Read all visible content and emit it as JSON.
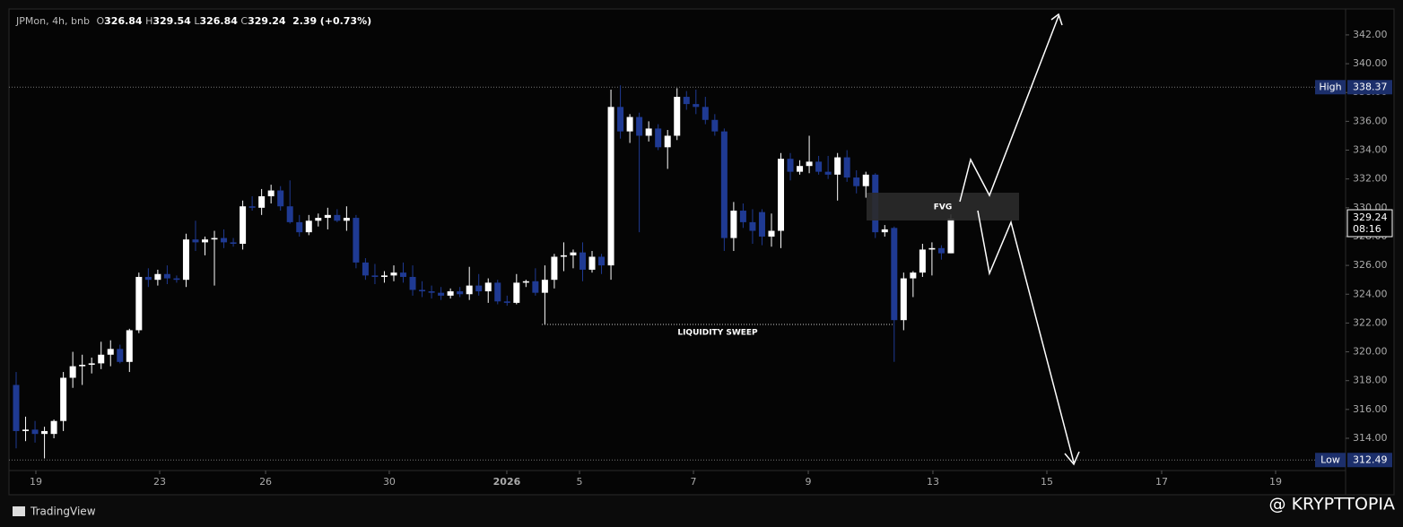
{
  "chart_data": {
    "type": "candlestick",
    "up_color": "#ffffff",
    "down_color": "#1f3a93",
    "header": {
      "symbol": "JPMon, 4h, bnb",
      "ohlc_letters": [
        "O",
        "H",
        "L",
        "C"
      ],
      "change": "2.39",
      "change_pct": "(+0.73%)"
    },
    "open": [
      317.7,
      314.5,
      314.6,
      314.3,
      314.3,
      315.2,
      318.2,
      319.0,
      319.1,
      319.2,
      319.8,
      320.2,
      319.3,
      321.5,
      325.2,
      325.0,
      325.4,
      325.1,
      325.0,
      327.8,
      327.6,
      327.8,
      327.9,
      327.6,
      327.5,
      330.1,
      330.0,
      330.8,
      331.2,
      330.1,
      329.0,
      328.3,
      329.1,
      329.3,
      329.5,
      329.1,
      329.3,
      326.2,
      325.3,
      325.2,
      325.3,
      325.5,
      325.2,
      324.3,
      324.2,
      324.1,
      323.9,
      324.2,
      324.0,
      324.6,
      324.2,
      324.8,
      323.5,
      323.4,
      324.8,
      324.9,
      324.1,
      325.0,
      326.6,
      326.7,
      326.9,
      325.7,
      326.6,
      326.0,
      337.0,
      335.3,
      336.3,
      335.0,
      335.5,
      334.2,
      335.0,
      337.7,
      337.2,
      337.0,
      336.1,
      335.3,
      327.9,
      329.8,
      329.0,
      329.7,
      328.0,
      328.4,
      333.4,
      332.5,
      332.9,
      333.2,
      332.5,
      332.3,
      333.5,
      332.1,
      331.5,
      332.3,
      328.3,
      328.6,
      322.2,
      325.1,
      325.5,
      327.1,
      327.2,
      326.84
    ],
    "high": [
      318.6,
      315.5,
      315.2,
      314.8,
      315.3,
      318.6,
      320.0,
      319.8,
      319.6,
      320.7,
      320.8,
      320.5,
      321.6,
      325.5,
      325.8,
      325.7,
      326.0,
      325.3,
      328.2,
      329.1,
      328.0,
      328.4,
      328.5,
      327.9,
      330.5,
      330.8,
      331.3,
      331.6,
      331.5,
      331.9,
      329.5,
      329.5,
      329.6,
      330.0,
      329.9,
      330.1,
      329.5,
      326.5,
      326.1,
      325.6,
      326.0,
      326.2,
      326.0,
      324.9,
      324.6,
      324.5,
      324.4,
      324.5,
      325.9,
      325.4,
      325.1,
      325.0,
      323.9,
      325.4,
      325.0,
      325.8,
      326.0,
      326.8,
      327.6,
      327.1,
      327.6,
      327.0,
      326.8,
      338.2,
      338.5,
      336.5,
      336.6,
      336.0,
      335.8,
      335.4,
      338.3,
      338.1,
      338.2,
      337.7,
      336.5,
      335.5,
      330.4,
      330.3,
      329.9,
      329.9,
      329.6,
      333.8,
      333.8,
      333.3,
      335.0,
      333.6,
      333.6,
      333.8,
      334.0,
      332.6,
      332.5,
      332.4,
      328.8,
      328.7,
      325.5,
      325.6,
      327.5,
      327.6,
      327.4,
      329.54
    ],
    "low": [
      313.3,
      313.8,
      313.7,
      312.6,
      314.0,
      314.5,
      317.5,
      317.7,
      318.5,
      318.8,
      319.0,
      319.2,
      318.6,
      321.3,
      324.5,
      324.6,
      324.7,
      324.8,
      324.5,
      327.0,
      326.7,
      324.6,
      327.2,
      327.3,
      327.1,
      329.8,
      329.5,
      330.3,
      329.8,
      328.9,
      328.0,
      328.1,
      328.7,
      328.5,
      329.0,
      328.4,
      325.8,
      325.0,
      324.7,
      324.8,
      324.9,
      324.8,
      323.9,
      323.8,
      323.7,
      323.6,
      323.7,
      323.8,
      323.6,
      323.9,
      323.4,
      323.3,
      323.2,
      323.3,
      324.5,
      323.9,
      321.9,
      324.4,
      325.6,
      325.8,
      324.9,
      325.5,
      325.4,
      325.0,
      334.8,
      334.5,
      328.3,
      334.6,
      334.0,
      332.7,
      334.7,
      336.8,
      336.5,
      335.8,
      335.0,
      327.0,
      327.0,
      328.6,
      327.5,
      327.4,
      327.3,
      327.2,
      331.9,
      332.3,
      332.4,
      332.3,
      332.0,
      330.5,
      331.8,
      331.0,
      330.7,
      327.9,
      328.0,
      319.3,
      321.5,
      323.8,
      325.2,
      325.3,
      326.4,
      326.84
    ],
    "close": [
      314.5,
      314.6,
      314.3,
      314.5,
      315.2,
      318.2,
      319.0,
      319.1,
      319.2,
      319.8,
      320.2,
      319.3,
      321.5,
      325.2,
      325.0,
      325.4,
      325.1,
      325.0,
      327.8,
      327.6,
      327.8,
      327.9,
      327.6,
      327.5,
      330.1,
      330.0,
      330.8,
      331.2,
      330.1,
      329.0,
      328.3,
      329.1,
      329.3,
      329.5,
      329.1,
      329.3,
      326.2,
      325.3,
      325.2,
      325.3,
      325.5,
      325.2,
      324.3,
      324.2,
      324.1,
      323.9,
      324.2,
      324.0,
      324.6,
      324.2,
      324.8,
      323.5,
      323.4,
      324.8,
      324.9,
      324.1,
      325.0,
      326.6,
      326.7,
      326.9,
      325.7,
      326.6,
      326.0,
      337.0,
      335.3,
      336.3,
      335.0,
      335.5,
      334.2,
      335.0,
      337.7,
      337.2,
      337.0,
      336.1,
      335.3,
      327.9,
      329.8,
      329.0,
      328.4,
      328.0,
      328.4,
      333.4,
      332.5,
      332.9,
      333.2,
      332.5,
      332.3,
      333.5,
      332.1,
      331.5,
      332.3,
      328.3,
      328.5,
      322.2,
      325.1,
      325.5,
      327.1,
      327.2,
      326.84,
      329.24
    ],
    "xlim": [
      -0.76,
      140.81
    ],
    "xticks": [
      {
        "value": 2.09,
        "label": "19"
      },
      {
        "value": 15.2,
        "label": "23"
      },
      {
        "value": 26.42,
        "label": "26"
      },
      {
        "value": 39.52,
        "label": "30"
      },
      {
        "value": 51.97,
        "label": "2026"
      },
      {
        "value": 59.67,
        "label": "5"
      },
      {
        "value": 71.74,
        "label": "7"
      },
      {
        "value": 83.9,
        "label": "9"
      },
      {
        "value": 97.1,
        "label": "13"
      },
      {
        "value": 109.17,
        "label": "15"
      },
      {
        "value": 121.33,
        "label": "17"
      },
      {
        "value": 133.4,
        "label": "19"
      }
    ],
    "ylim": [
      311.76,
      343.8
    ],
    "yticks": [
      {
        "value": 314,
        "label": "314.00"
      },
      {
        "value": 316,
        "label": "316.00"
      },
      {
        "value": 318,
        "label": "318.00"
      },
      {
        "value": 320,
        "label": "320.00"
      },
      {
        "value": 322,
        "label": "322.00"
      },
      {
        "value": 324,
        "label": "324.00"
      },
      {
        "value": 326,
        "label": "326.00"
      },
      {
        "value": 328,
        "label": "328.00"
      },
      {
        "value": 330,
        "label": "330.00"
      },
      {
        "value": 332,
        "label": "332.00"
      },
      {
        "value": 334,
        "label": "334.00"
      },
      {
        "value": 336,
        "label": "336.00"
      },
      {
        "value": 338,
        "label": "338.00"
      },
      {
        "value": 340,
        "label": "340.00"
      },
      {
        "value": 342,
        "label": "342.00"
      }
    ],
    "high_line": {
      "label": "High",
      "value": 338.37
    },
    "low_line": {
      "label": "Low",
      "value": 312.49
    },
    "countdown": "08:16",
    "annotations": [
      "FVG",
      "LIQUIDITY SWEEP"
    ]
  },
  "branding": {
    "platform": "TradingView",
    "watermark": "@ KRYPTTOPIA"
  }
}
